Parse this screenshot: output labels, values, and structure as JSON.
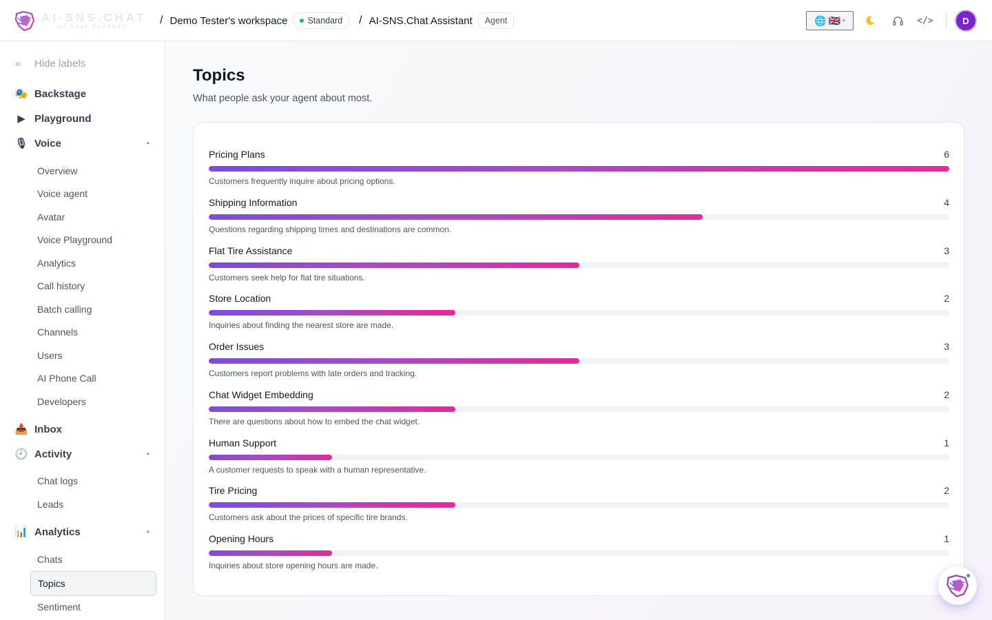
{
  "header": {
    "logo_text": "AI-SNS.CHAT",
    "logo_tagline": "AI CHAT SUPPORT",
    "breadcrumbs": [
      {
        "label": "Demo Tester's workspace",
        "badge": "Standard"
      },
      {
        "label": "AI-SNS.Chat Assistant",
        "badge": "Agent"
      }
    ],
    "separator": "/",
    "language": {
      "globe": "🌐",
      "flag": "🇬🇧"
    },
    "icons": [
      "globe-icon",
      "uk-flag-icon",
      "moon-icon",
      "headset-icon",
      "code-icon"
    ],
    "code_icon_text": "</>",
    "avatar_initial": "D"
  },
  "sidebar": {
    "hide_labels": "Hide labels",
    "sections": [
      {
        "label": "Backstage",
        "icon": "🎭"
      },
      {
        "label": "Playground",
        "icon": "▶"
      },
      {
        "label": "Voice",
        "icon": "🎙",
        "expanded": true,
        "items": [
          "Overview",
          "Voice agent",
          "Avatar",
          "Voice Playground",
          "Analytics",
          "Call history",
          "Batch calling",
          "Channels",
          "Users",
          "AI Phone Call",
          "Developers"
        ]
      },
      {
        "label": "Inbox",
        "icon": "📥"
      },
      {
        "label": "Activity",
        "icon": "🕘",
        "expanded": true,
        "items": [
          "Chat logs",
          "Leads"
        ]
      },
      {
        "label": "Analytics",
        "icon": "📊",
        "expanded": true,
        "items": [
          "Chats",
          "Topics",
          "Sentiment"
        ],
        "active": "Topics"
      }
    ]
  },
  "main": {
    "title": "Topics",
    "subtitle": "What people ask your agent about most.",
    "max_count": 6,
    "topics": [
      {
        "name": "Pricing Plans",
        "count": 6,
        "description": "Customers frequently inquire about pricing options."
      },
      {
        "name": "Shipping Information",
        "count": 4,
        "description": "Questions regarding shipping times and destinations are common."
      },
      {
        "name": "Flat Tire Assistance",
        "count": 3,
        "description": "Customers seek help for flat tire situations."
      },
      {
        "name": "Store Location",
        "count": 2,
        "description": "Inquiries about finding the nearest store are made."
      },
      {
        "name": "Order Issues",
        "count": 3,
        "description": "Customers report problems with late orders and tracking."
      },
      {
        "name": "Chat Widget Embedding",
        "count": 2,
        "description": "There are questions about how to embed the chat widget."
      },
      {
        "name": "Human Support",
        "count": 1,
        "description": "A customer requests to speak with a human representative."
      },
      {
        "name": "Tire Pricing",
        "count": 2,
        "description": "Customers ask about the prices of specific tire brands."
      },
      {
        "name": "Opening Hours",
        "count": 1,
        "description": "Inquiries about store opening hours are made."
      }
    ]
  },
  "colors": {
    "accent_start": "#7c4ddb",
    "accent_end": "#e42a9c",
    "status_dot": "#10b981",
    "avatar_bg": "#7e22ce"
  }
}
